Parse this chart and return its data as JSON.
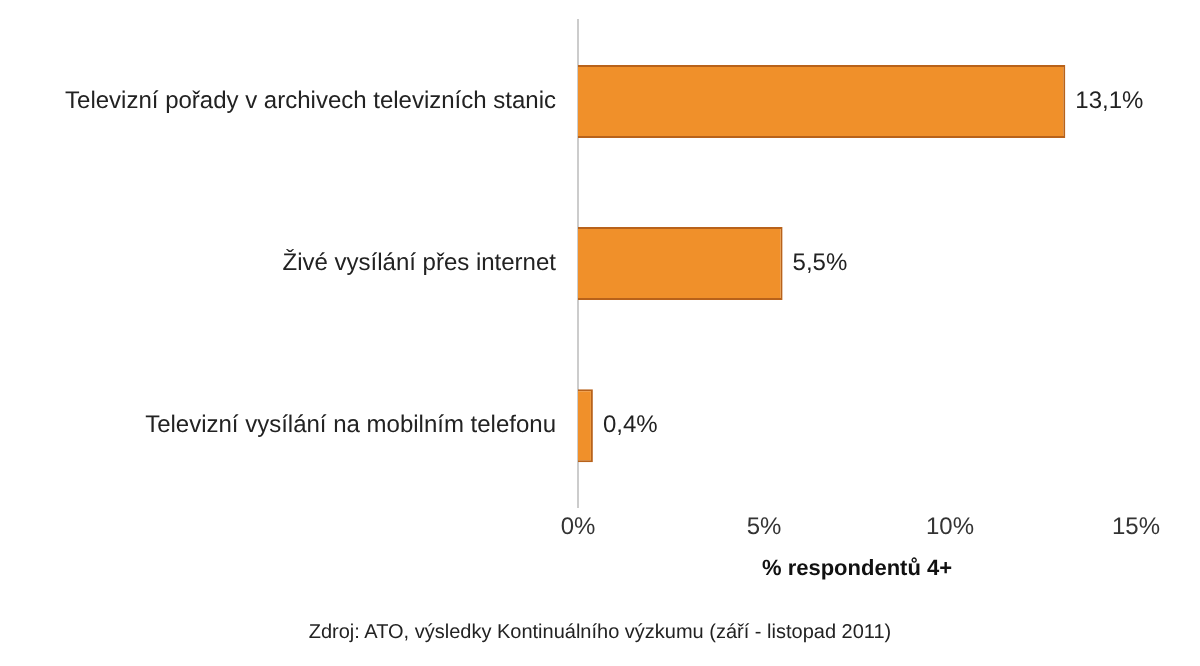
{
  "chart_data": {
    "type": "bar",
    "orientation": "horizontal",
    "categories": [
      "Televizní pořady v archivech televizních stanic",
      "Živé vysílání přes internet",
      "Televizní vysílání na mobilním telefonu"
    ],
    "values": [
      13.1,
      5.5,
      0.4
    ],
    "value_labels": [
      "13,1%",
      "5,5%",
      "0,4%"
    ],
    "color": "#f0902a",
    "xlim": [
      0,
      15
    ],
    "xticks": [
      {
        "value": 0,
        "label": "0%"
      },
      {
        "value": 5,
        "label": "5%"
      },
      {
        "value": 10,
        "label": "10%"
      },
      {
        "value": 15,
        "label": "15%"
      }
    ],
    "xlabel": "% respondentů 4+",
    "grid": false,
    "legend": false,
    "annotations": [
      "Zdroj: ATO, výsledky Kontinuálního výzkumu (září - listopad 2011)"
    ]
  }
}
